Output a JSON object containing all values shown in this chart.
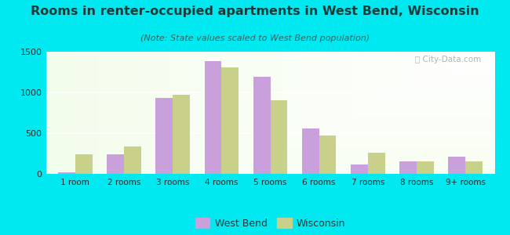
{
  "title": "Rooms in renter-occupied apartments in West Bend, Wisconsin",
  "subtitle": "(Note: State values scaled to West Bend population)",
  "categories": [
    "1 room",
    "2 rooms",
    "3 rooms",
    "4 rooms",
    "5 rooms",
    "6 rooms",
    "7 rooms",
    "8 rooms",
    "9+ rooms"
  ],
  "west_bend": [
    20,
    240,
    930,
    1380,
    1190,
    560,
    120,
    155,
    210
  ],
  "wisconsin": [
    240,
    340,
    970,
    1310,
    900,
    475,
    255,
    155,
    155
  ],
  "west_bend_color": "#c9a0dc",
  "wisconsin_color": "#c8d08a",
  "background_outer": "#00e8f0",
  "title_color": "#1a3a3a",
  "subtitle_color": "#336666",
  "ylim": [
    0,
    1500
  ],
  "yticks": [
    0,
    500,
    1000,
    1500
  ],
  "figsize": [
    6.5,
    3.0
  ],
  "dpi": 100
}
